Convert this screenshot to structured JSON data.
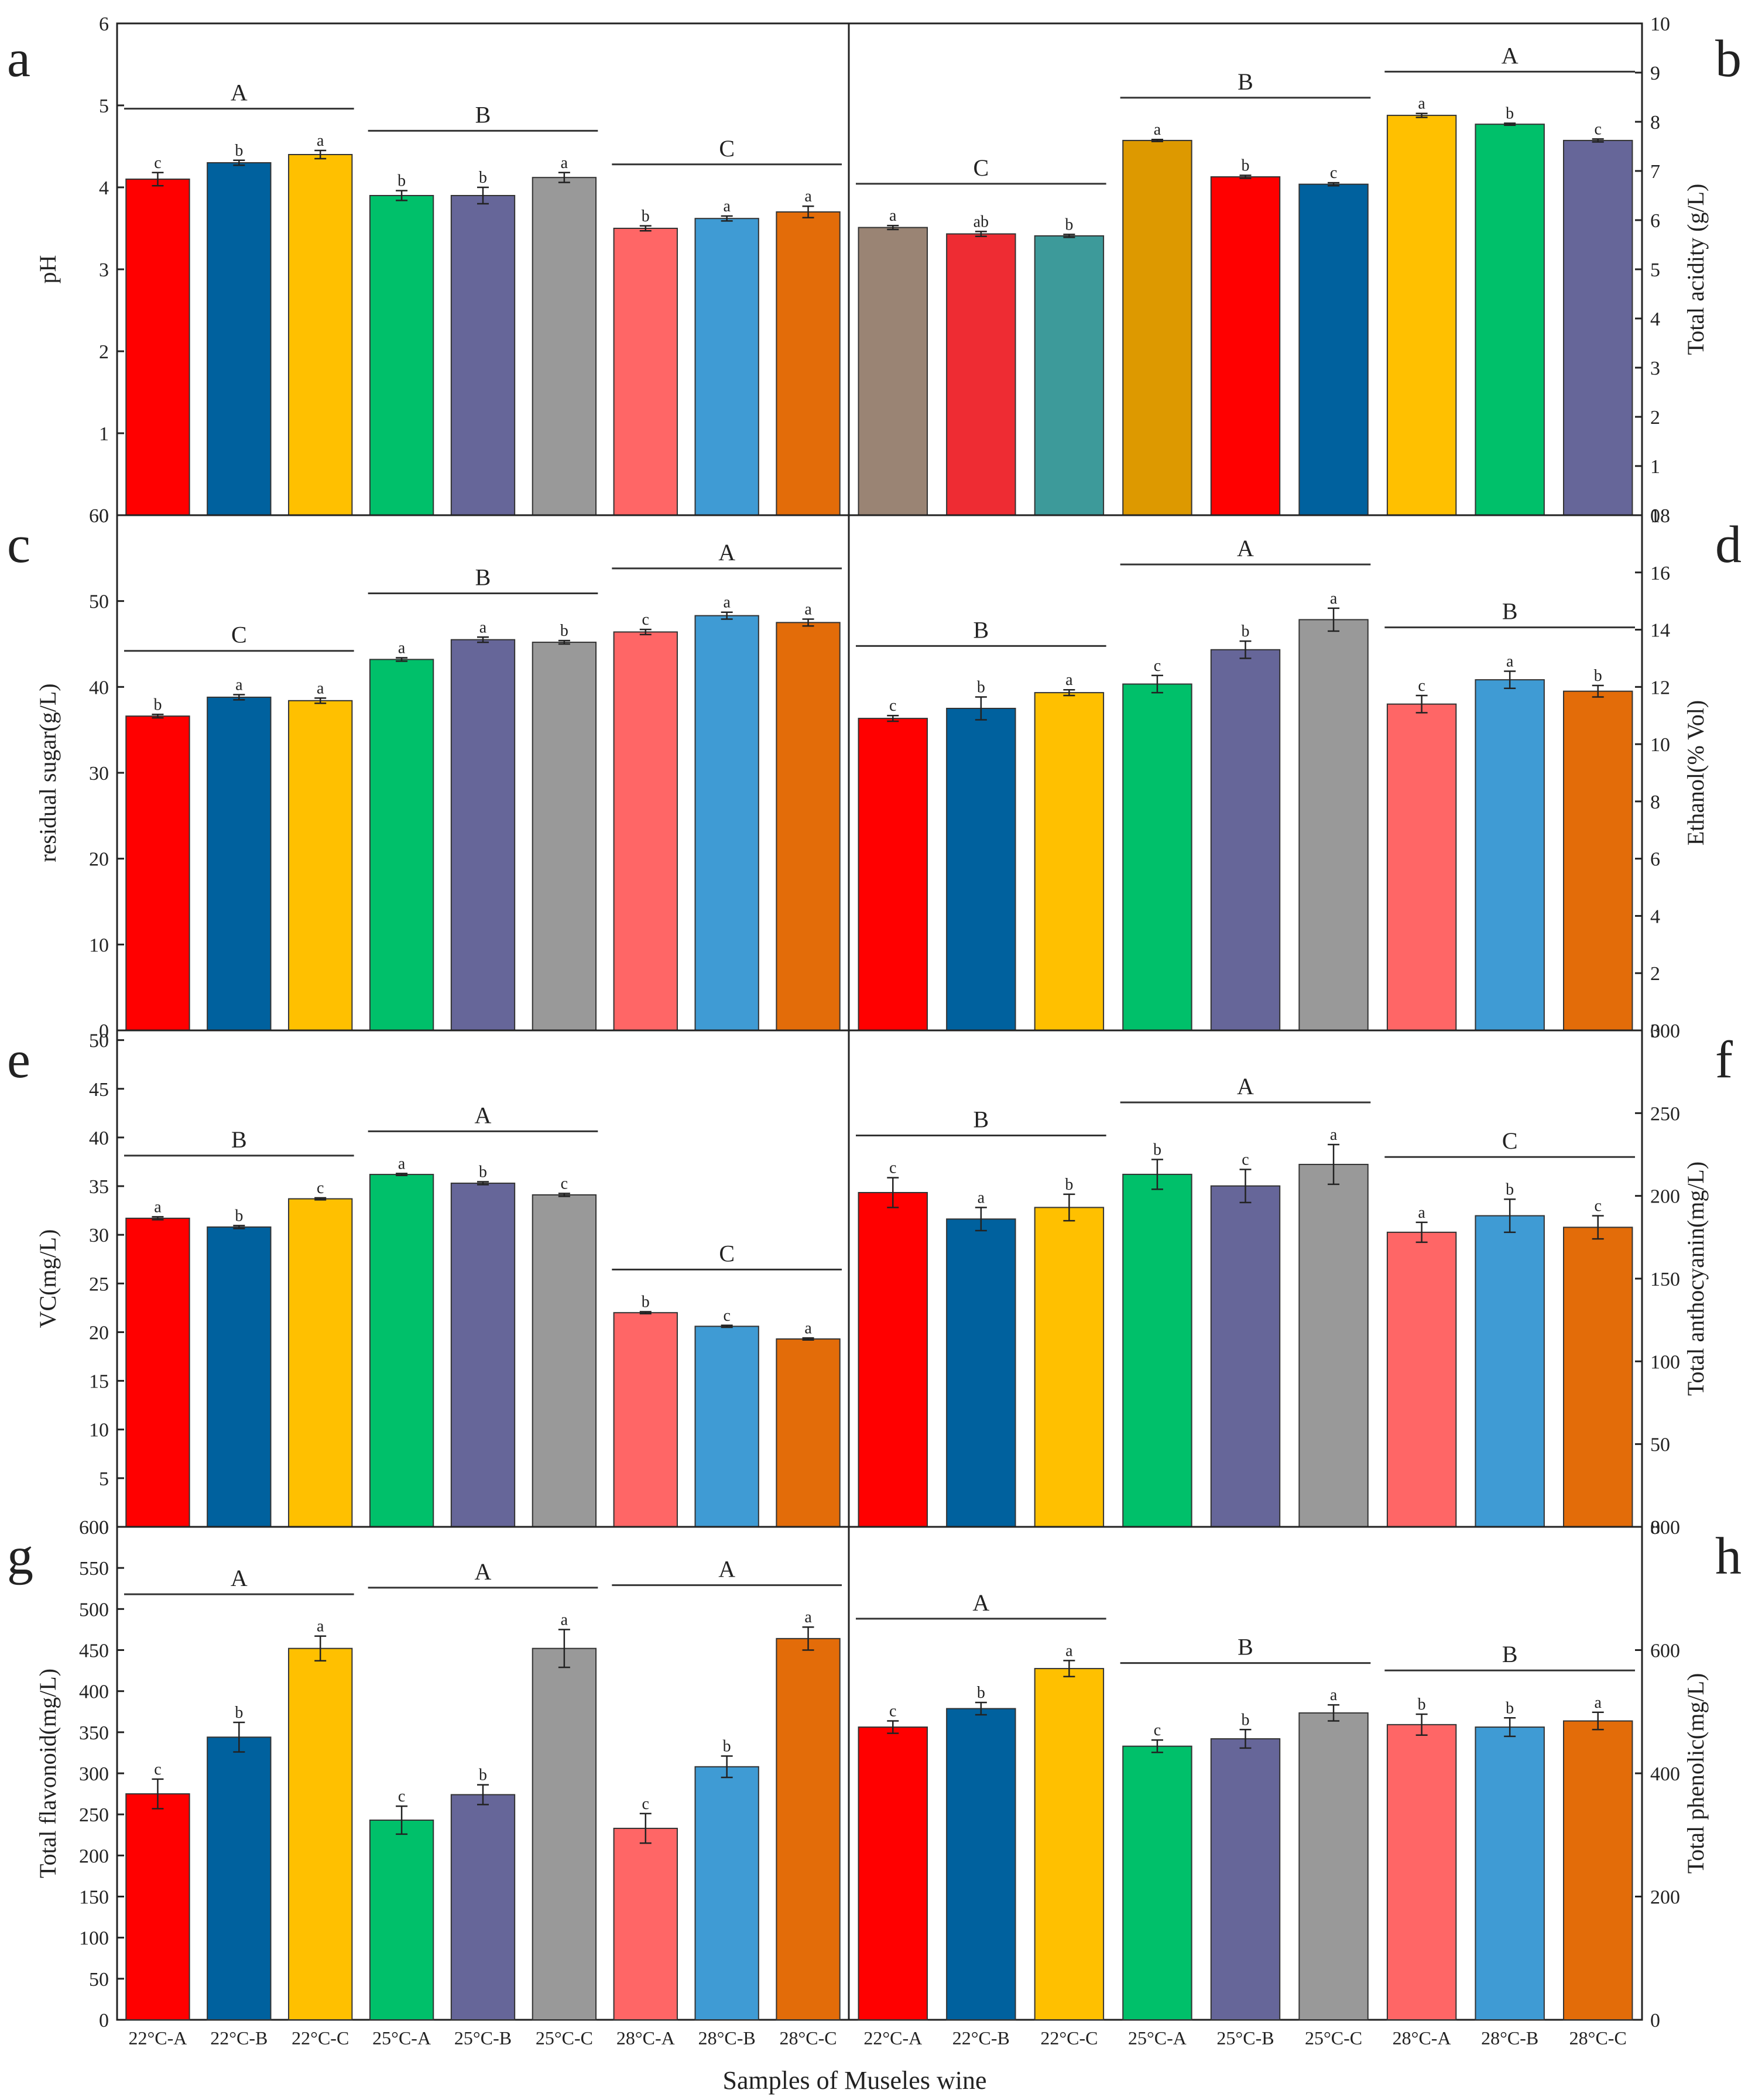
{
  "figure": {
    "xlabel": "Samples of Museles wine",
    "categories": [
      "22°C-A",
      "22°C-B",
      "22°C-C",
      "25°C-A",
      "25°C-B",
      "25°C-C",
      "28°C-A",
      "28°C-B",
      "28°C-C"
    ],
    "palette_left": [
      "#ff0000",
      "#00619e",
      "#ffc000",
      "#00c06a",
      "#666699",
      "#999999",
      "#ff6666",
      "#3f9bd4",
      "#e36c09"
    ],
    "palette_b": [
      "#9a8474",
      "#ee2c33",
      "#3d9a9a",
      "#dd9900",
      "#ff0000",
      "#00619e",
      "#ffc000",
      "#00c06a",
      "#666699"
    ]
  },
  "chart_data": [
    {
      "id": "a",
      "panel_label": "a",
      "type": "bar",
      "ylabel": "pH",
      "axis_side": "left",
      "ylim": [
        0,
        6
      ],
      "yticks": [
        0,
        1,
        2,
        3,
        4,
        5,
        6
      ],
      "ytick_labels": [
        "0",
        "1",
        "2",
        "3",
        "4",
        "5",
        "6"
      ],
      "values": [
        4.1,
        4.3,
        4.4,
        3.9,
        3.9,
        4.12,
        3.5,
        3.62,
        3.7
      ],
      "errors": [
        0.08,
        0.03,
        0.05,
        0.06,
        0.1,
        0.06,
        0.03,
        0.03,
        0.07
      ],
      "letters": [
        "c",
        "b",
        "a",
        "b",
        "b",
        "a",
        "b",
        "a",
        "a"
      ],
      "groups": [
        {
          "label": "A",
          "start": 0,
          "end": 2
        },
        {
          "label": "B",
          "start": 3,
          "end": 5
        },
        {
          "label": "C",
          "start": 6,
          "end": 8
        }
      ]
    },
    {
      "id": "b",
      "panel_label": "b",
      "type": "bar",
      "ylabel": "Total acidity (g/L)",
      "axis_side": "right",
      "ylim": [
        0,
        10
      ],
      "yticks": [
        0,
        1,
        2,
        3,
        4,
        5,
        6,
        7,
        8,
        9,
        10
      ],
      "ytick_labels": [
        "0",
        "1",
        "2",
        "3",
        "4",
        "5",
        "6",
        "7",
        "8",
        "9",
        "10"
      ],
      "values": [
        5.85,
        5.72,
        5.68,
        7.62,
        6.88,
        6.73,
        8.13,
        7.95,
        7.62
      ],
      "errors": [
        0.04,
        0.05,
        0.03,
        0.02,
        0.03,
        0.03,
        0.04,
        0.02,
        0.03
      ],
      "letters": [
        "a",
        "ab",
        "b",
        "a",
        "b",
        "c",
        "a",
        "b",
        "c"
      ],
      "groups": [
        {
          "label": "C",
          "start": 0,
          "end": 2
        },
        {
          "label": "B",
          "start": 3,
          "end": 5
        },
        {
          "label": "A",
          "start": 6,
          "end": 8
        }
      ]
    },
    {
      "id": "c",
      "panel_label": "c",
      "type": "bar",
      "ylabel": "residual sugar(g/L)",
      "axis_side": "left",
      "ylim": [
        0,
        60
      ],
      "yticks": [
        0,
        10,
        20,
        30,
        40,
        50,
        60
      ],
      "ytick_labels": [
        "0",
        "10",
        "20",
        "30",
        "40",
        "50",
        "60"
      ],
      "values": [
        36.6,
        38.8,
        38.4,
        43.2,
        45.5,
        45.2,
        46.4,
        48.3,
        47.5
      ],
      "errors": [
        0.2,
        0.3,
        0.3,
        0.2,
        0.3,
        0.2,
        0.3,
        0.4,
        0.4
      ],
      "letters": [
        "b",
        "a",
        "a",
        "a",
        "a",
        "b",
        "c",
        "a",
        "a"
      ],
      "groups": [
        {
          "label": "C",
          "start": 0,
          "end": 2
        },
        {
          "label": "B",
          "start": 3,
          "end": 5
        },
        {
          "label": "A",
          "start": 6,
          "end": 8
        }
      ]
    },
    {
      "id": "d",
      "panel_label": "d",
      "type": "bar",
      "ylabel": "Ethanol(% Vol)",
      "axis_side": "right",
      "ylim": [
        0,
        18
      ],
      "yticks": [
        0,
        2,
        4,
        6,
        8,
        10,
        12,
        14,
        16,
        18
      ],
      "ytick_labels": [
        "0",
        "2",
        "4",
        "6",
        "8",
        "10",
        "12",
        "14",
        "16",
        "18"
      ],
      "values": [
        10.9,
        11.25,
        11.8,
        12.1,
        13.3,
        14.35,
        11.4,
        12.25,
        11.85
      ],
      "errors": [
        0.1,
        0.4,
        0.1,
        0.3,
        0.3,
        0.4,
        0.3,
        0.3,
        0.2
      ],
      "letters": [
        "c",
        "b",
        "a",
        "c",
        "b",
        "a",
        "c",
        "a",
        "b"
      ],
      "groups": [
        {
          "label": "B",
          "start": 0,
          "end": 2
        },
        {
          "label": "A",
          "start": 3,
          "end": 5
        },
        {
          "label": "B",
          "start": 6,
          "end": 8
        }
      ]
    },
    {
      "id": "e",
      "panel_label": "e",
      "type": "bar",
      "ylabel": "VC(mg/L)",
      "axis_side": "left",
      "ylim": [
        0,
        51
      ],
      "yticks": [
        0,
        5,
        10,
        15,
        20,
        25,
        30,
        35,
        40,
        45,
        50
      ],
      "ytick_labels": [
        "0",
        "5",
        "10",
        "15",
        "20",
        "25",
        "30",
        "35",
        "40",
        "45",
        "50"
      ],
      "values": [
        31.7,
        30.8,
        33.7,
        36.2,
        35.3,
        34.1,
        22.0,
        20.6,
        19.3
      ],
      "errors": [
        0.15,
        0.15,
        0.1,
        0.1,
        0.15,
        0.15,
        0.1,
        0.1,
        0.1
      ],
      "letters": [
        "a",
        "b",
        "c",
        "a",
        "b",
        "c",
        "b",
        "c",
        "a"
      ],
      "groups": [
        {
          "label": "B",
          "start": 0,
          "end": 2
        },
        {
          "label": "A",
          "start": 3,
          "end": 5
        },
        {
          "label": "C",
          "start": 6,
          "end": 8
        }
      ]
    },
    {
      "id": "f",
      "panel_label": "f",
      "type": "bar",
      "ylabel": "Total anthocyanin(mg/L)",
      "axis_side": "right",
      "ylim": [
        0,
        300
      ],
      "yticks": [
        0,
        50,
        100,
        150,
        200,
        250,
        300
      ],
      "ytick_labels": [
        "0",
        "50",
        "100",
        "150",
        "200",
        "250",
        "300"
      ],
      "values": [
        202,
        186,
        193,
        213,
        206,
        219,
        178,
        188,
        181
      ],
      "errors": [
        9,
        7,
        8,
        9,
        10,
        12,
        6,
        10,
        7
      ],
      "letters": [
        "c",
        "a",
        "b",
        "b",
        "c",
        "a",
        "a",
        "b",
        "c"
      ],
      "groups": [
        {
          "label": "B",
          "start": 0,
          "end": 2
        },
        {
          "label": "A",
          "start": 3,
          "end": 5
        },
        {
          "label": "C",
          "start": 6,
          "end": 8
        }
      ]
    },
    {
      "id": "g",
      "panel_label": "g",
      "type": "bar",
      "ylabel": "Total flavonoid(mg/L)",
      "axis_side": "left",
      "ylim": [
        0,
        600
      ],
      "yticks": [
        0,
        50,
        100,
        150,
        200,
        250,
        300,
        350,
        400,
        450,
        500,
        550,
        600
      ],
      "ytick_labels": [
        "0",
        "50",
        "100",
        "150",
        "200",
        "250",
        "300",
        "350",
        "400",
        "450",
        "500",
        "550",
        "600"
      ],
      "values": [
        275,
        344,
        452,
        243,
        274,
        452,
        233,
        308,
        464
      ],
      "errors": [
        18,
        18,
        15,
        17,
        12,
        23,
        18,
        13,
        14
      ],
      "letters": [
        "c",
        "b",
        "a",
        "c",
        "b",
        "a",
        "c",
        "b",
        "a"
      ],
      "groups": [
        {
          "label": "A",
          "start": 0,
          "end": 2
        },
        {
          "label": "A",
          "start": 3,
          "end": 5
        },
        {
          "label": "A",
          "start": 6,
          "end": 8
        }
      ]
    },
    {
      "id": "h",
      "panel_label": "h",
      "type": "bar",
      "ylabel": "Total phenolic(mg/L)",
      "axis_side": "right",
      "ylim": [
        0,
        800
      ],
      "yticks": [
        0,
        200,
        400,
        600,
        800
      ],
      "ytick_labels": [
        "0",
        "200",
        "400",
        "600",
        "800"
      ],
      "values": [
        475,
        505,
        570,
        444,
        456,
        498,
        479,
        475,
        485
      ],
      "errors": [
        10,
        10,
        13,
        10,
        15,
        13,
        17,
        15,
        14
      ],
      "letters": [
        "c",
        "b",
        "a",
        "c",
        "b",
        "a",
        "b",
        "b",
        "a"
      ],
      "groups": [
        {
          "label": "A",
          "start": 0,
          "end": 2
        },
        {
          "label": "B",
          "start": 3,
          "end": 5
        },
        {
          "label": "B",
          "start": 6,
          "end": 8
        }
      ]
    }
  ]
}
